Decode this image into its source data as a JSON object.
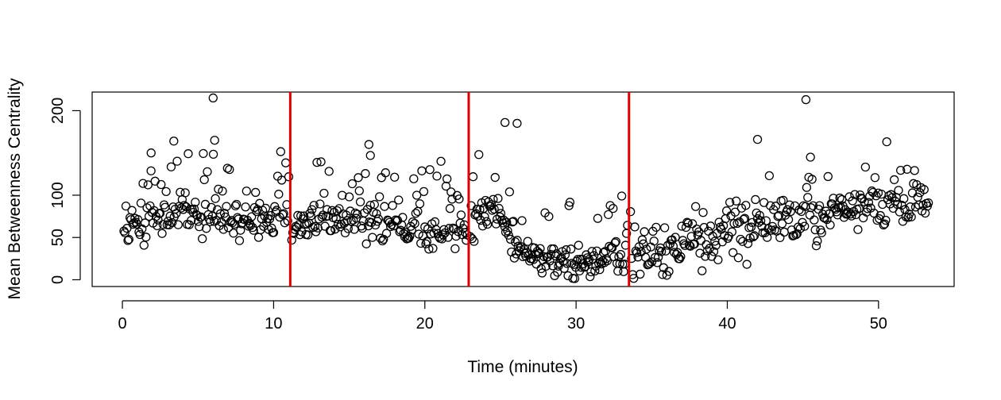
{
  "chart_data": {
    "type": "scatter",
    "title": "",
    "xlabel": "Time (minutes)",
    "ylabel": "Mean Betweenness Centrality",
    "xlim": [
      -2,
      55
    ],
    "ylim": [
      -8,
      222
    ],
    "xticks": [
      0,
      10,
      20,
      30,
      40,
      50
    ],
    "yticks": [
      0,
      50,
      100,
      200
    ],
    "grid": false,
    "legend": "none",
    "marker_color": "#000000",
    "vline_color": "#e00000",
    "vlines": [
      11.1,
      22.9,
      33.5
    ],
    "segments": [
      {
        "start": 0.1,
        "end": 11.0,
        "n": 165,
        "trend": [
          [
            0,
            60
          ],
          [
            3,
            78
          ],
          [
            6,
            75
          ],
          [
            9,
            68
          ],
          [
            11,
            72
          ]
        ],
        "spread": 11,
        "outlier_rate": 0.18,
        "outlier_range": [
          20,
          70
        ],
        "seed": 11
      },
      {
        "start": 11.2,
        "end": 22.8,
        "n": 175,
        "trend": [
          [
            11.2,
            58
          ],
          [
            14,
            72
          ],
          [
            17,
            62
          ],
          [
            20,
            57
          ],
          [
            22.8,
            55
          ]
        ],
        "spread": 10,
        "outlier_rate": 0.17,
        "outlier_range": [
          25,
          65
        ],
        "seed": 23
      },
      {
        "start": 23.0,
        "end": 33.4,
        "n": 165,
        "trend": [
          [
            23,
            62
          ],
          [
            24.5,
            85
          ],
          [
            26,
            35
          ],
          [
            28,
            22
          ],
          [
            30,
            20
          ],
          [
            33.4,
            25
          ]
        ],
        "spread": 10,
        "outlier_rate": 0.12,
        "outlier_range": [
          30,
          75
        ],
        "seed": 37
      },
      {
        "start": 33.6,
        "end": 53.3,
        "n": 280,
        "trend": [
          [
            33.6,
            25
          ],
          [
            36,
            35
          ],
          [
            39,
            45
          ],
          [
            42,
            62
          ],
          [
            46,
            75
          ],
          [
            50,
            85
          ],
          [
            53.3,
            90
          ]
        ],
        "spread": 14,
        "outlier_rate": 0.12,
        "outlier_range": [
          20,
          45
        ],
        "seed": 53
      }
    ],
    "notable_points": [
      {
        "x": 6.0,
        "y": 215
      },
      {
        "x": 45.2,
        "y": 213
      },
      {
        "x": 25.3,
        "y": 186
      },
      {
        "x": 26.1,
        "y": 185
      },
      {
        "x": 6.1,
        "y": 165
      },
      {
        "x": 3.4,
        "y": 164
      },
      {
        "x": 16.3,
        "y": 160
      },
      {
        "x": 42.0,
        "y": 166
      },
      {
        "x": 1.9,
        "y": 150
      },
      {
        "x": 16.4,
        "y": 147
      },
      {
        "x": 45.5,
        "y": 145
      }
    ]
  }
}
